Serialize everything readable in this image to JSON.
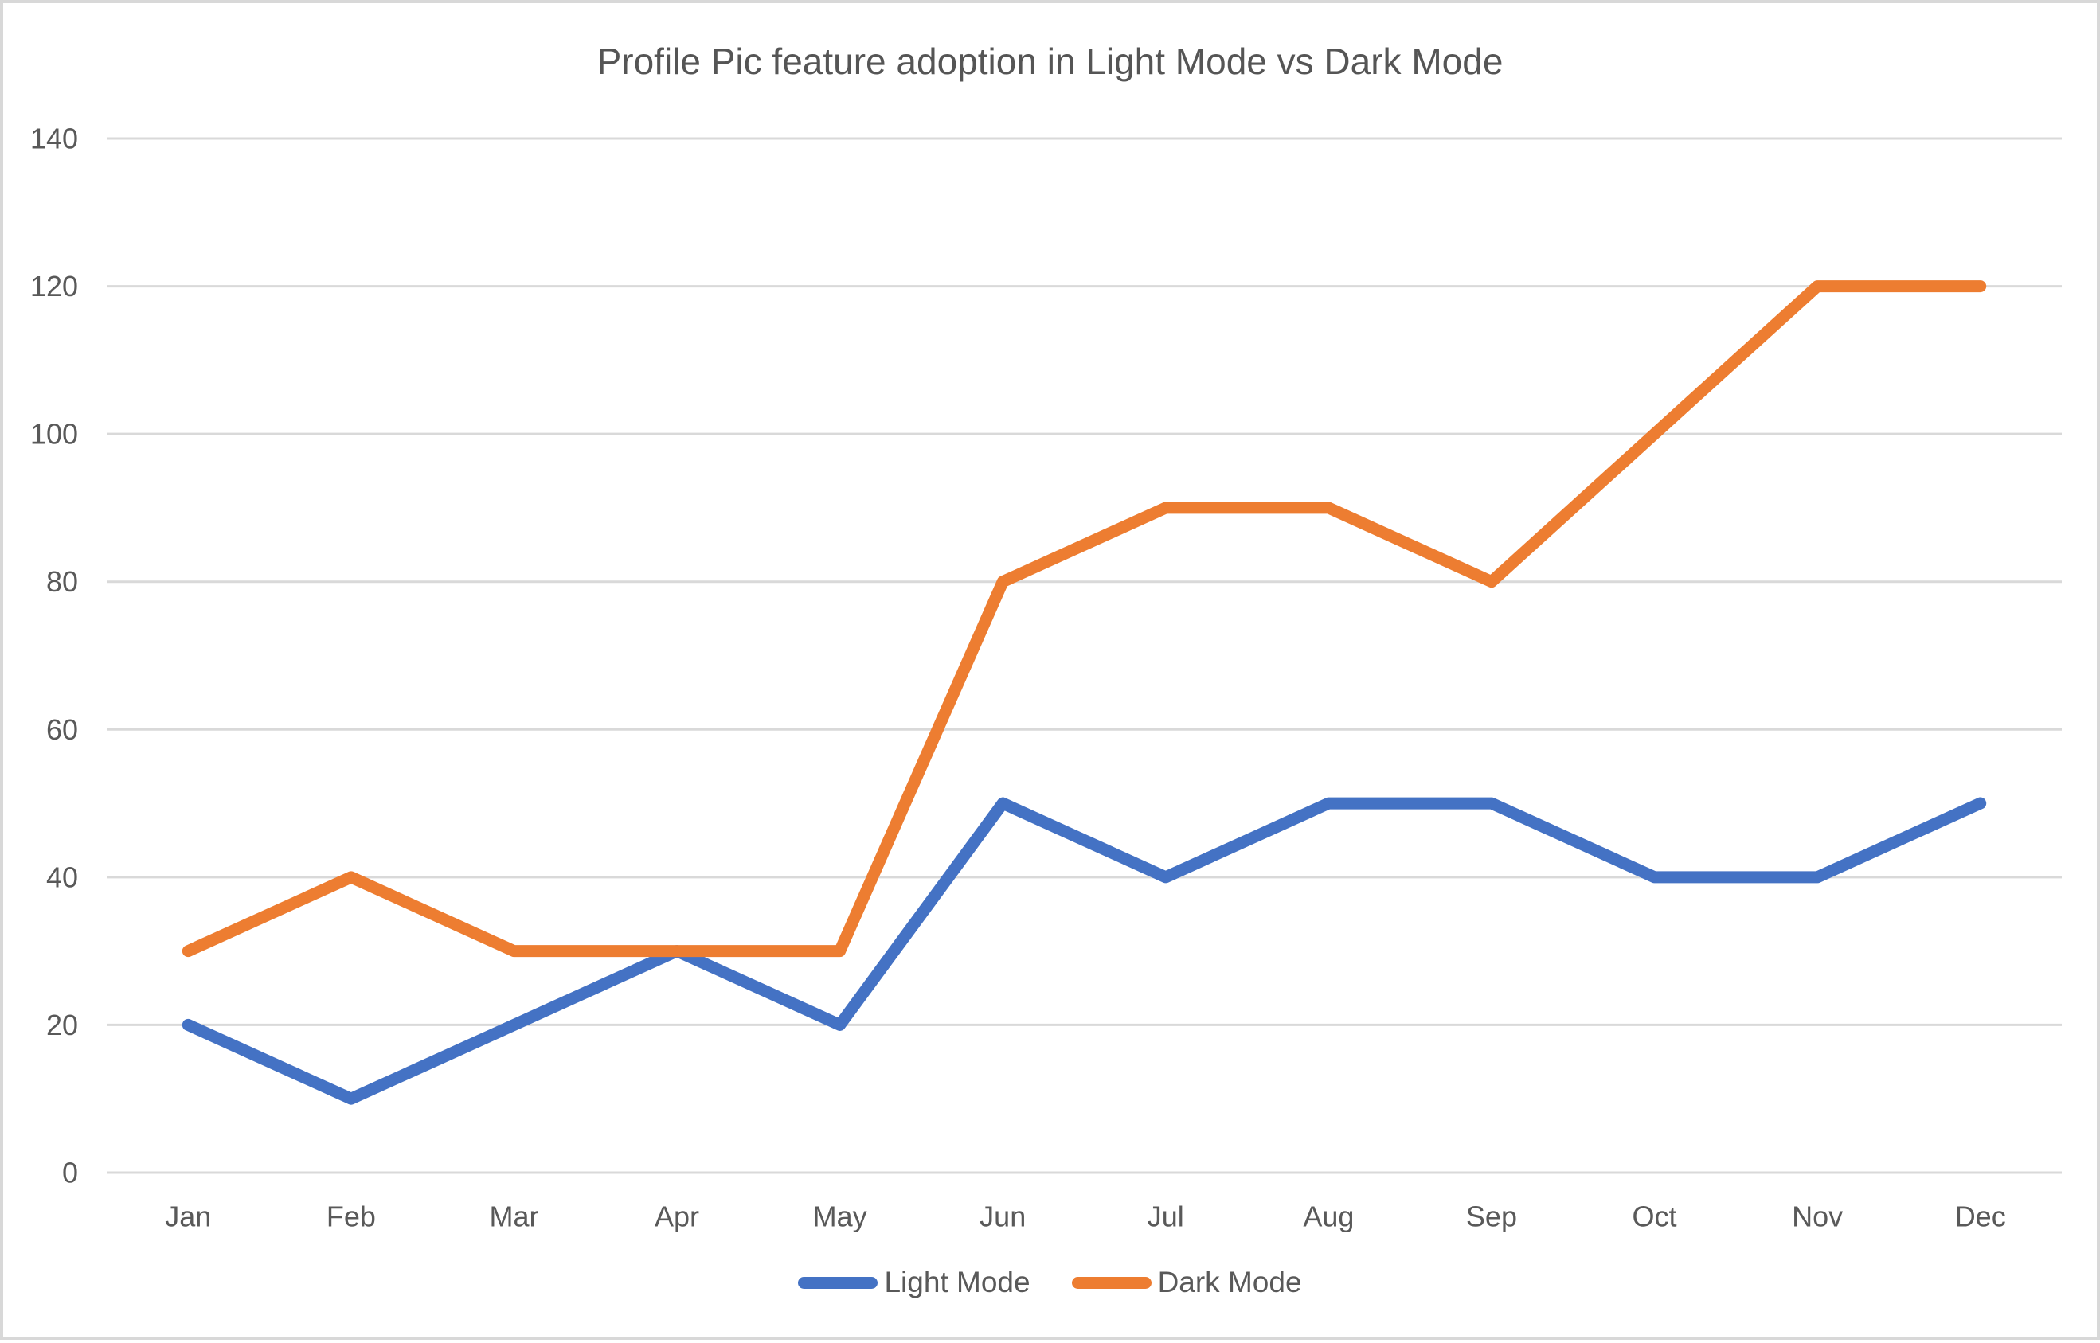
{
  "chart_data": {
    "type": "line",
    "title": "Profile Pic feature adoption in Light Mode vs Dark Mode",
    "categories": [
      "Jan",
      "Feb",
      "Mar",
      "Apr",
      "May",
      "Jun",
      "Jul",
      "Aug",
      "Sep",
      "Oct",
      "Nov",
      "Dec"
    ],
    "series": [
      {
        "name": "Light Mode",
        "color": "#4472C4",
        "values": [
          20,
          10,
          20,
          30,
          20,
          50,
          40,
          50,
          50,
          40,
          40,
          50
        ]
      },
      {
        "name": "Dark Mode",
        "color": "#ED7D31",
        "values": [
          30,
          40,
          30,
          30,
          30,
          80,
          90,
          90,
          80,
          100,
          120,
          120
        ]
      }
    ],
    "xlabel": "",
    "ylabel": "",
    "ylim": [
      0,
      140
    ],
    "ytick_step": 20,
    "ytick_labels": [
      "0",
      "20",
      "40",
      "60",
      "80",
      "100",
      "120",
      "140"
    ],
    "grid": "horizontal",
    "grid_color": "#D9D9D9",
    "text_color": "#595959",
    "title_color": "#555555",
    "legend_position": "bottom"
  }
}
